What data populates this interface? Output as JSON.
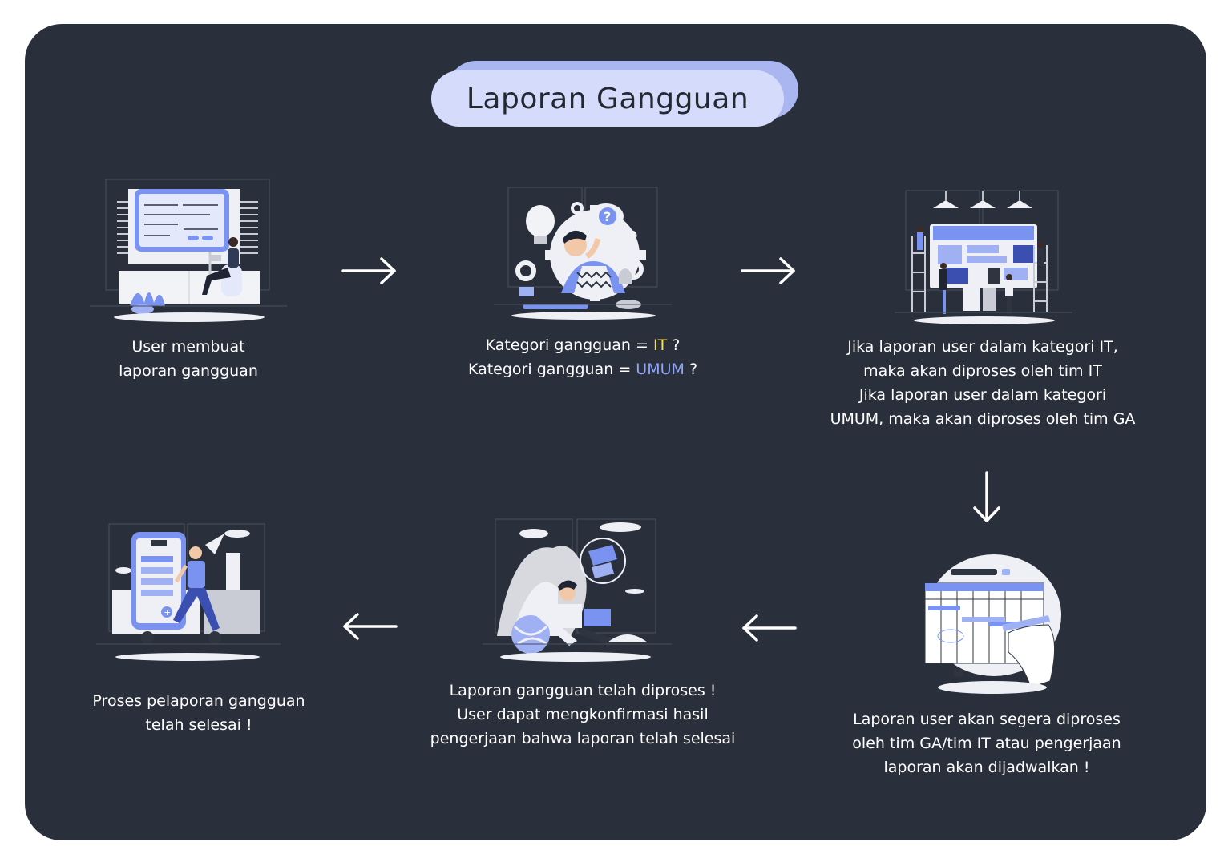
{
  "title": "Laporan Gangguan",
  "colors": {
    "background": "#2a303b",
    "title_pill": "#d5dcfb",
    "title_pill_shadow": "#a9b6f0",
    "accent": "#7b93f0",
    "highlight_it": "#f6e05e",
    "highlight_umum": "#8fa5f5"
  },
  "steps": [
    {
      "id": 1,
      "illustration": "user-desk-form-illustration",
      "lines": [
        "User membuat",
        "laporan gangguan"
      ]
    },
    {
      "id": 2,
      "illustration": "thinking-person-gears-illustration",
      "line1": {
        "prefix": "Kategori gangguan = ",
        "highlight": "IT",
        "suffix": " ?"
      },
      "line2": {
        "prefix": "Kategori gangguan = ",
        "highlight": "UMUM",
        "suffix": " ?"
      }
    },
    {
      "id": 3,
      "illustration": "team-dashboard-illustration",
      "lines": [
        "Jika laporan user dalam kategori IT,",
        "maka akan diproses oleh tim IT",
        "Jika laporan user dalam kategori",
        "UMUM, maka akan diproses oleh tim GA"
      ]
    },
    {
      "id": 4,
      "illustration": "schedule-board-illustration",
      "lines": [
        "Laporan user akan segera diproses",
        "oleh tim GA/tim IT atau pengerjaan",
        "laporan akan dijadwalkan !"
      ]
    },
    {
      "id": 5,
      "illustration": "relaxing-beach-chair-illustration",
      "lines": [
        "Laporan gangguan telah diproses !",
        "User dapat mengkonfirmasi hasil",
        "pengerjaan bahwa laporan telah selesai"
      ]
    },
    {
      "id": 6,
      "illustration": "phone-checklist-runner-illustration",
      "lines": [
        "Proses pelaporan gangguan",
        "telah selesai !"
      ]
    }
  ],
  "arrows": [
    "arrow-right-icon",
    "arrow-right-icon",
    "arrow-down-icon",
    "arrow-left-icon",
    "arrow-left-icon"
  ]
}
